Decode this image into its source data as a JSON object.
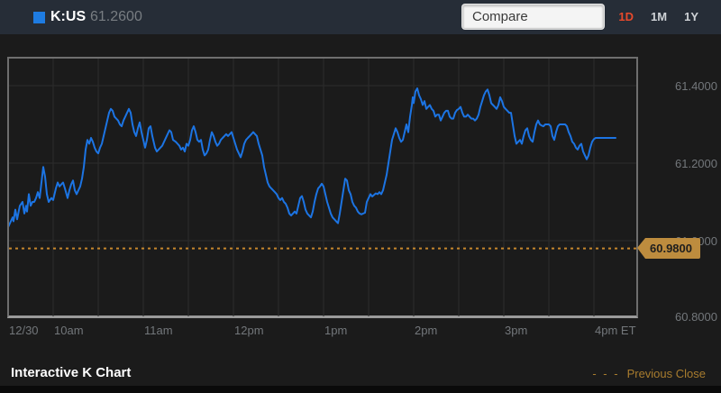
{
  "header": {
    "ticker": "K:US",
    "last_price": "61.2600",
    "compare_label": "Compare",
    "ranges": [
      {
        "label": "1D",
        "active": true
      },
      {
        "label": "1M",
        "active": false
      },
      {
        "label": "1Y",
        "active": false
      }
    ]
  },
  "colors": {
    "line": "#1c74e3",
    "legend_swatch": "#1e7ce2",
    "active_range": "#e7492b",
    "inactive_range": "#ced2d6",
    "prev_close_line": "#c6872c",
    "badge_bg": "#bd8c3e",
    "grid": "#2d2d2d",
    "axis_text": "#73777b",
    "header_bg": "#262d37",
    "page_bg": "#1b1b1b"
  },
  "chart_data": {
    "type": "line",
    "series_name": "K:US intraday price",
    "x_axis": {
      "unit": "time (ET)",
      "range_hours": [
        9.5,
        16.45
      ],
      "labels": [
        {
          "text": "12/30",
          "t": 9.5
        },
        {
          "text": "10am",
          "t": 10
        },
        {
          "text": "11am",
          "t": 11
        },
        {
          "text": "12pm",
          "t": 12
        },
        {
          "text": "1pm",
          "t": 13
        },
        {
          "text": "2pm",
          "t": 14
        },
        {
          "text": "3pm",
          "t": 15
        },
        {
          "text": "4pm ET",
          "t": 16
        }
      ],
      "gridline_interval_hours": 0.5
    },
    "y_axis": {
      "range": [
        60.8,
        61.47
      ],
      "ticks": [
        {
          "label": "61.4000",
          "value": 61.4
        },
        {
          "label": "61.2000",
          "value": 61.2
        },
        {
          "label": "61.0000",
          "value": 61.0
        },
        {
          "label": "60.8000",
          "value": 60.8
        }
      ]
    },
    "previous_close": {
      "value": 60.98,
      "badge_label": "60.9800"
    },
    "points": [
      [
        9.49,
        61.18
      ],
      [
        9.49,
        61.035
      ],
      [
        9.52,
        61.05
      ],
      [
        9.54,
        61.06
      ],
      [
        9.55,
        61.05
      ],
      [
        9.57,
        61.08
      ],
      [
        9.59,
        61.055
      ],
      [
        9.62,
        61.09
      ],
      [
        9.65,
        61.1
      ],
      [
        9.67,
        61.07
      ],
      [
        9.69,
        61.09
      ],
      [
        9.7,
        61.075
      ],
      [
        9.72,
        61.12
      ],
      [
        9.74,
        61.09
      ],
      [
        9.76,
        61.1
      ],
      [
        9.78,
        61.1
      ],
      [
        9.8,
        61.11
      ],
      [
        9.82,
        61.125
      ],
      [
        9.84,
        61.11
      ],
      [
        9.86,
        61.15
      ],
      [
        9.88,
        61.19
      ],
      [
        9.9,
        61.165
      ],
      [
        9.92,
        61.12
      ],
      [
        9.94,
        61.1
      ],
      [
        9.97,
        61.11
      ],
      [
        9.99,
        61.105
      ],
      [
        10.02,
        61.135
      ],
      [
        10.04,
        61.15
      ],
      [
        10.06,
        61.14
      ],
      [
        10.08,
        61.145
      ],
      [
        10.1,
        61.15
      ],
      [
        10.12,
        61.135
      ],
      [
        10.15,
        61.11
      ],
      [
        10.17,
        61.13
      ],
      [
        10.19,
        61.145
      ],
      [
        10.21,
        61.155
      ],
      [
        10.23,
        61.13
      ],
      [
        10.25,
        61.12
      ],
      [
        10.27,
        61.13
      ],
      [
        10.29,
        61.14
      ],
      [
        10.31,
        61.16
      ],
      [
        10.33,
        61.19
      ],
      [
        10.35,
        61.235
      ],
      [
        10.37,
        61.26
      ],
      [
        10.39,
        61.25
      ],
      [
        10.41,
        61.265
      ],
      [
        10.43,
        61.255
      ],
      [
        10.45,
        61.24
      ],
      [
        10.47,
        61.23
      ],
      [
        10.49,
        61.225
      ],
      [
        10.51,
        61.24
      ],
      [
        10.53,
        61.25
      ],
      [
        10.55,
        61.27
      ],
      [
        10.57,
        61.29
      ],
      [
        10.59,
        61.31
      ],
      [
        10.61,
        61.33
      ],
      [
        10.63,
        61.34
      ],
      [
        10.65,
        61.335
      ],
      [
        10.67,
        61.32
      ],
      [
        10.69,
        61.315
      ],
      [
        10.71,
        61.31
      ],
      [
        10.73,
        61.3
      ],
      [
        10.75,
        61.295
      ],
      [
        10.77,
        61.31
      ],
      [
        10.79,
        61.32
      ],
      [
        10.81,
        61.33
      ],
      [
        10.83,
        61.34
      ],
      [
        10.85,
        61.33
      ],
      [
        10.87,
        61.3
      ],
      [
        10.89,
        61.28
      ],
      [
        10.91,
        61.27
      ],
      [
        10.93,
        61.29
      ],
      [
        10.95,
        61.305
      ],
      [
        10.97,
        61.28
      ],
      [
        10.99,
        61.26
      ],
      [
        11.01,
        61.24
      ],
      [
        11.03,
        61.26
      ],
      [
        11.05,
        61.29
      ],
      [
        11.07,
        61.295
      ],
      [
        11.09,
        61.27
      ],
      [
        11.12,
        61.24
      ],
      [
        11.14,
        61.23
      ],
      [
        11.16,
        61.235
      ],
      [
        11.18,
        61.24
      ],
      [
        11.2,
        61.245
      ],
      [
        11.23,
        61.26
      ],
      [
        11.25,
        61.27
      ],
      [
        11.28,
        61.285
      ],
      [
        11.3,
        61.28
      ],
      [
        11.32,
        61.26
      ],
      [
        11.35,
        61.255
      ],
      [
        11.37,
        61.25
      ],
      [
        11.39,
        61.245
      ],
      [
        11.41,
        61.235
      ],
      [
        11.43,
        61.24
      ],
      [
        11.45,
        61.23
      ],
      [
        11.47,
        61.25
      ],
      [
        11.49,
        61.245
      ],
      [
        11.51,
        61.26
      ],
      [
        11.53,
        61.285
      ],
      [
        11.55,
        61.295
      ],
      [
        11.57,
        61.28
      ],
      [
        11.59,
        61.26
      ],
      [
        11.61,
        61.255
      ],
      [
        11.63,
        61.26
      ],
      [
        11.65,
        61.235
      ],
      [
        11.67,
        61.22
      ],
      [
        11.69,
        61.225
      ],
      [
        11.71,
        61.235
      ],
      [
        11.73,
        61.26
      ],
      [
        11.75,
        61.28
      ],
      [
        11.77,
        61.27
      ],
      [
        11.79,
        61.255
      ],
      [
        11.81,
        61.245
      ],
      [
        11.83,
        61.25
      ],
      [
        11.85,
        61.26
      ],
      [
        11.87,
        61.265
      ],
      [
        11.89,
        61.27
      ],
      [
        11.91,
        61.275
      ],
      [
        11.93,
        61.27
      ],
      [
        11.95,
        61.275
      ],
      [
        11.97,
        61.28
      ],
      [
        11.99,
        61.265
      ],
      [
        12.01,
        61.25
      ],
      [
        12.03,
        61.235
      ],
      [
        12.05,
        61.225
      ],
      [
        12.07,
        61.215
      ],
      [
        12.09,
        61.23
      ],
      [
        12.11,
        61.25
      ],
      [
        12.13,
        61.26
      ],
      [
        12.15,
        61.265
      ],
      [
        12.17,
        61.27
      ],
      [
        12.19,
        61.275
      ],
      [
        12.21,
        61.28
      ],
      [
        12.23,
        61.275
      ],
      [
        12.25,
        61.27
      ],
      [
        12.27,
        61.25
      ],
      [
        12.29,
        61.235
      ],
      [
        12.31,
        61.22
      ],
      [
        12.33,
        61.19
      ],
      [
        12.35,
        61.17
      ],
      [
        12.37,
        61.15
      ],
      [
        12.39,
        61.14
      ],
      [
        12.41,
        61.135
      ],
      [
        12.43,
        61.13
      ],
      [
        12.45,
        61.125
      ],
      [
        12.47,
        61.12
      ],
      [
        12.49,
        61.11
      ],
      [
        12.51,
        61.105
      ],
      [
        12.53,
        61.11
      ],
      [
        12.55,
        61.1
      ],
      [
        12.57,
        61.095
      ],
      [
        12.59,
        61.085
      ],
      [
        12.61,
        61.07
      ],
      [
        12.63,
        61.065
      ],
      [
        12.65,
        61.07
      ],
      [
        12.67,
        61.075
      ],
      [
        12.69,
        61.07
      ],
      [
        12.71,
        61.09
      ],
      [
        12.73,
        61.11
      ],
      [
        12.75,
        61.115
      ],
      [
        12.77,
        61.1
      ],
      [
        12.79,
        61.08
      ],
      [
        12.81,
        61.07
      ],
      [
        12.83,
        61.065
      ],
      [
        12.85,
        61.06
      ],
      [
        12.87,
        61.075
      ],
      [
        12.89,
        61.1
      ],
      [
        12.91,
        61.12
      ],
      [
        12.93,
        61.135
      ],
      [
        12.95,
        61.14
      ],
      [
        12.97,
        61.147
      ],
      [
        12.99,
        61.14
      ],
      [
        13.01,
        61.12
      ],
      [
        13.03,
        61.1
      ],
      [
        13.05,
        61.085
      ],
      [
        13.07,
        61.07
      ],
      [
        13.09,
        61.06
      ],
      [
        13.11,
        61.055
      ],
      [
        13.13,
        61.05
      ],
      [
        13.15,
        61.045
      ],
      [
        13.17,
        61.07
      ],
      [
        13.19,
        61.1
      ],
      [
        13.21,
        61.13
      ],
      [
        13.23,
        61.16
      ],
      [
        13.25,
        61.155
      ],
      [
        13.27,
        61.13
      ],
      [
        13.29,
        61.12
      ],
      [
        13.31,
        61.1
      ],
      [
        13.33,
        61.09
      ],
      [
        13.35,
        61.085
      ],
      [
        13.37,
        61.075
      ],
      [
        13.39,
        61.07
      ],
      [
        13.41,
        61.068
      ],
      [
        13.43,
        61.07
      ],
      [
        13.45,
        61.072
      ],
      [
        13.47,
        61.1
      ],
      [
        13.49,
        61.11
      ],
      [
        13.51,
        61.12
      ],
      [
        13.53,
        61.114
      ],
      [
        13.55,
        61.118
      ],
      [
        13.57,
        61.122
      ],
      [
        13.59,
        61.12
      ],
      [
        13.61,
        61.125
      ],
      [
        13.63,
        61.12
      ],
      [
        13.65,
        61.13
      ],
      [
        13.67,
        61.15
      ],
      [
        13.69,
        61.17
      ],
      [
        13.71,
        61.2
      ],
      [
        13.73,
        61.23
      ],
      [
        13.75,
        61.26
      ],
      [
        13.77,
        61.275
      ],
      [
        13.79,
        61.29
      ],
      [
        13.81,
        61.28
      ],
      [
        13.83,
        61.265
      ],
      [
        13.85,
        61.255
      ],
      [
        13.87,
        61.26
      ],
      [
        13.89,
        61.28
      ],
      [
        13.91,
        61.3
      ],
      [
        13.93,
        61.28
      ],
      [
        13.95,
        61.32
      ],
      [
        13.97,
        61.35
      ],
      [
        13.98,
        61.37
      ],
      [
        13.99,
        61.355
      ],
      [
        14.01,
        61.385
      ],
      [
        14.03,
        61.393
      ],
      [
        14.05,
        61.375
      ],
      [
        14.07,
        61.365
      ],
      [
        14.09,
        61.35
      ],
      [
        14.11,
        61.36
      ],
      [
        14.13,
        61.34
      ],
      [
        14.15,
        61.345
      ],
      [
        14.17,
        61.35
      ],
      [
        14.19,
        61.34
      ],
      [
        14.21,
        61.335
      ],
      [
        14.23,
        61.32
      ],
      [
        14.25,
        61.325
      ],
      [
        14.27,
        61.325
      ],
      [
        14.29,
        61.31
      ],
      [
        14.31,
        61.32
      ],
      [
        14.33,
        61.33
      ],
      [
        14.35,
        61.335
      ],
      [
        14.37,
        61.335
      ],
      [
        14.39,
        61.32
      ],
      [
        14.41,
        61.315
      ],
      [
        14.43,
        61.315
      ],
      [
        14.45,
        61.33
      ],
      [
        14.47,
        61.337
      ],
      [
        14.49,
        61.34
      ],
      [
        14.51,
        61.345
      ],
      [
        14.53,
        61.33
      ],
      [
        14.55,
        61.32
      ],
      [
        14.57,
        61.32
      ],
      [
        14.59,
        61.325
      ],
      [
        14.61,
        61.32
      ],
      [
        14.63,
        61.315
      ],
      [
        14.65,
        61.315
      ],
      [
        14.67,
        61.31
      ],
      [
        14.69,
        61.315
      ],
      [
        14.71,
        61.325
      ],
      [
        14.73,
        61.345
      ],
      [
        14.75,
        61.36
      ],
      [
        14.77,
        61.375
      ],
      [
        14.79,
        61.385
      ],
      [
        14.81,
        61.39
      ],
      [
        14.83,
        61.375
      ],
      [
        14.85,
        61.355
      ],
      [
        14.87,
        61.35
      ],
      [
        14.89,
        61.345
      ],
      [
        14.91,
        61.34
      ],
      [
        14.93,
        61.35
      ],
      [
        14.95,
        61.37
      ],
      [
        14.97,
        61.36
      ],
      [
        14.99,
        61.345
      ],
      [
        15.01,
        61.34
      ],
      [
        15.03,
        61.335
      ],
      [
        15.05,
        61.33
      ],
      [
        15.07,
        61.33
      ],
      [
        15.09,
        61.3
      ],
      [
        15.11,
        61.27
      ],
      [
        15.13,
        61.25
      ],
      [
        15.15,
        61.255
      ],
      [
        15.17,
        61.26
      ],
      [
        15.19,
        61.25
      ],
      [
        15.21,
        61.27
      ],
      [
        15.23,
        61.285
      ],
      [
        15.25,
        61.29
      ],
      [
        15.27,
        61.27
      ],
      [
        15.29,
        61.26
      ],
      [
        15.31,
        61.255
      ],
      [
        15.33,
        61.28
      ],
      [
        15.35,
        61.3
      ],
      [
        15.37,
        61.31
      ],
      [
        15.39,
        61.3
      ],
      [
        15.41,
        61.297
      ],
      [
        15.43,
        61.295
      ],
      [
        15.45,
        61.3
      ],
      [
        15.47,
        61.3
      ],
      [
        15.49,
        61.3
      ],
      [
        15.51,
        61.295
      ],
      [
        15.53,
        61.27
      ],
      [
        15.55,
        61.26
      ],
      [
        15.57,
        61.28
      ],
      [
        15.59,
        61.295
      ],
      [
        15.61,
        61.3
      ],
      [
        15.63,
        61.3
      ],
      [
        15.65,
        61.3
      ],
      [
        15.67,
        61.3
      ],
      [
        15.69,
        61.295
      ],
      [
        15.71,
        61.28
      ],
      [
        15.73,
        61.27
      ],
      [
        15.75,
        61.255
      ],
      [
        15.77,
        61.25
      ],
      [
        15.79,
        61.24
      ],
      [
        15.81,
        61.235
      ],
      [
        15.83,
        61.245
      ],
      [
        15.85,
        61.25
      ],
      [
        15.87,
        61.23
      ],
      [
        15.89,
        61.22
      ],
      [
        15.91,
        61.21
      ],
      [
        15.93,
        61.22
      ],
      [
        15.95,
        61.24
      ],
      [
        15.97,
        61.255
      ],
      [
        15.99,
        61.262
      ],
      [
        16.01,
        61.265
      ],
      [
        16.23,
        61.265
      ]
    ]
  },
  "footer": {
    "title": "Interactive K Chart",
    "prev_close_dashes": "- - -",
    "prev_close_label": "Previous Close"
  }
}
